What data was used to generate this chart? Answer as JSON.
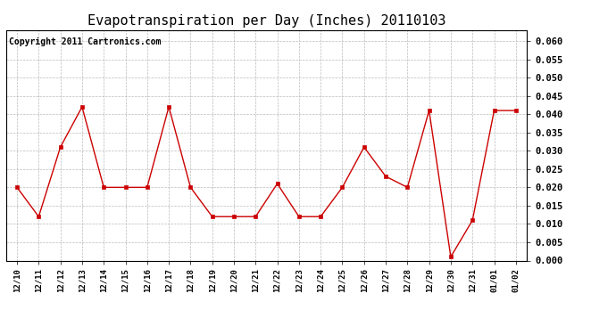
{
  "title": "Evapotranspiration per Day (Inches) 20110103",
  "copyright_text": "Copyright 2011 Cartronics.com",
  "x_labels": [
    "12/10",
    "12/11",
    "12/12",
    "12/13",
    "12/14",
    "12/15",
    "12/16",
    "12/17",
    "12/18",
    "12/19",
    "12/20",
    "12/21",
    "12/22",
    "12/23",
    "12/24",
    "12/25",
    "12/26",
    "12/27",
    "12/28",
    "12/29",
    "12/30",
    "12/31",
    "01/01",
    "01/02"
  ],
  "y_values": [
    0.02,
    0.012,
    0.031,
    0.042,
    0.02,
    0.02,
    0.02,
    0.042,
    0.02,
    0.012,
    0.012,
    0.012,
    0.021,
    0.012,
    0.012,
    0.02,
    0.031,
    0.023,
    0.02,
    0.041,
    0.001,
    0.011,
    0.041,
    0.041
  ],
  "line_color": "#cc0000",
  "marker_color": "#cc0000",
  "bg_color": "#ffffff",
  "grid_color": "#aaaaaa",
  "ylim": [
    0.0,
    0.063
  ],
  "yticks": [
    0.0,
    0.005,
    0.01,
    0.015,
    0.02,
    0.025,
    0.03,
    0.035,
    0.04,
    0.045,
    0.05,
    0.055,
    0.06
  ],
  "title_fontsize": 11,
  "copyright_fontsize": 7
}
